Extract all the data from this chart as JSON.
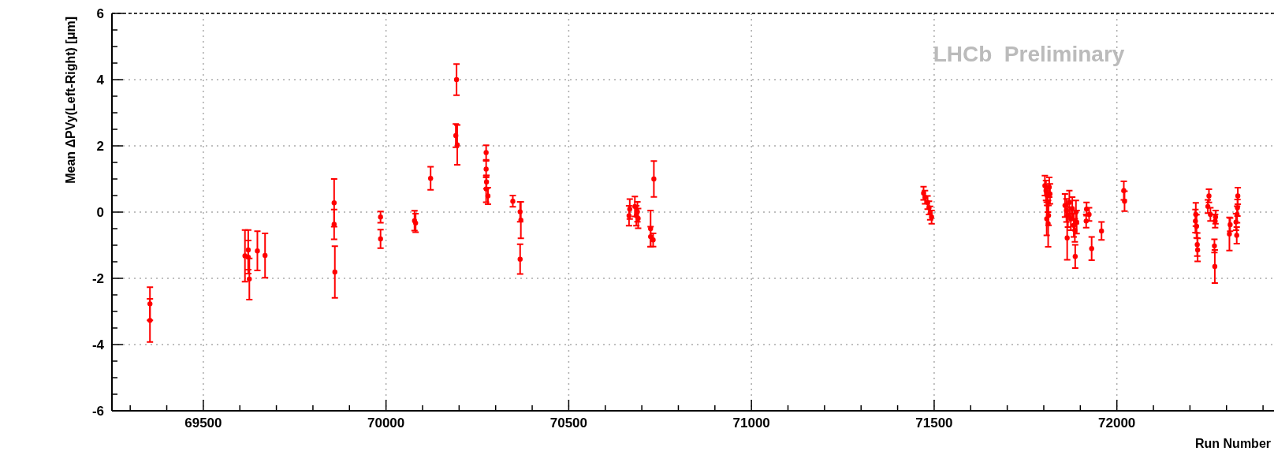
{
  "chart_data": {
    "type": "scatter",
    "xlabel": "Run Number",
    "ylabel": "Mean ΔPVy(Left-Right) [μm]",
    "annotations": [
      "LHCb  Preliminary"
    ],
    "xlim": [
      69250,
      72430
    ],
    "ylim": [
      -6,
      6
    ],
    "xticks": [
      {
        "value": 69300,
        "label": null
      },
      {
        "value": 69400,
        "label": null
      },
      69500,
      {
        "value": 69600,
        "label": null
      },
      {
        "value": 69700,
        "label": null
      },
      {
        "value": 69800,
        "label": null
      },
      {
        "value": 69900,
        "label": null
      },
      70000,
      {
        "value": 70100,
        "label": null
      },
      {
        "value": 70200,
        "label": null
      },
      {
        "value": 70300,
        "label": null
      },
      {
        "value": 70400,
        "label": null
      },
      70500,
      {
        "value": 70600,
        "label": null
      },
      {
        "value": 70700,
        "label": null
      },
      {
        "value": 70800,
        "label": null
      },
      {
        "value": 70900,
        "label": null
      },
      71000,
      {
        "value": 71100,
        "label": null
      },
      {
        "value": 71200,
        "label": null
      },
      {
        "value": 71300,
        "label": null
      },
      {
        "value": 71400,
        "label": null
      },
      71500,
      {
        "value": 71600,
        "label": null
      },
      {
        "value": 71700,
        "label": null
      },
      {
        "value": 71800,
        "label": null
      },
      {
        "value": 71900,
        "label": null
      },
      72000,
      {
        "value": 72100,
        "label": null
      },
      {
        "value": 72200,
        "label": null
      },
      {
        "value": 72300,
        "label": null
      },
      {
        "value": 72400,
        "label": null
      }
    ],
    "yticks": [
      -6,
      {
        "value": -5.5,
        "label": null
      },
      {
        "value": -5,
        "label": null
      },
      {
        "value": -4.5,
        "label": null
      },
      -4,
      {
        "value": -3.5,
        "label": null
      },
      {
        "value": -3,
        "label": null
      },
      {
        "value": -2.5,
        "label": null
      },
      -2,
      {
        "value": -1.5,
        "label": null
      },
      {
        "value": -1,
        "label": null
      },
      {
        "value": -0.5,
        "label": null
      },
      0,
      {
        "value": 0.5,
        "label": null
      },
      {
        "value": 1,
        "label": null
      },
      {
        "value": 1.5,
        "label": null
      },
      2,
      {
        "value": 2.5,
        "label": null
      },
      {
        "value": 3,
        "label": null
      },
      {
        "value": 3.5,
        "label": null
      },
      4,
      {
        "value": 4.5,
        "label": null
      },
      {
        "value": 5,
        "label": null
      },
      {
        "value": 5.5,
        "label": null
      },
      6
    ],
    "grid": true,
    "marker": "circle",
    "series": [
      {
        "color": "#ff0000",
        "x": [
          69354,
          69354,
          69614,
          69623,
          69623,
          69626,
          69648,
          69669,
          69858,
          69858,
          69860,
          69985,
          69985,
          70078,
          70081,
          70122,
          70193,
          70191,
          70195,
          70274,
          70274,
          70275,
          70274,
          70279,
          70347,
          70367,
          70369,
          70367,
          70665,
          70667,
          70681,
          70685,
          70688,
          70690,
          70733,
          70724,
          70724,
          70731,
          71471,
          71475,
          71482,
          71486,
          71489,
          71493,
          71803,
          71806,
          71809,
          71811,
          71813,
          71808,
          71812,
          71815,
          71817,
          71864,
          71886,
          71858,
          71862,
          71866,
          71870,
          71874,
          71878,
          71882,
          71885,
          71888,
          71890,
          71917,
          71916,
          71924,
          71931,
          71958,
          72019,
          72021,
          72216,
          72215,
          72218,
          72220,
          72221,
          72252,
          72249,
          72256,
          72270,
          72269,
          72267,
          72268,
          72308,
          72310,
          72328,
          72326,
          72330,
          72331,
          72329
        ],
        "values": [
          -2.77,
          -3.27,
          -1.32,
          -1.14,
          -1.36,
          -2.02,
          -1.17,
          -1.31,
          0.28,
          -0.37,
          -1.81,
          -0.15,
          -0.81,
          -0.26,
          -0.33,
          1.02,
          4.0,
          2.31,
          2.03,
          1.8,
          1.3,
          0.91,
          0.7,
          0.49,
          0.33,
          0.01,
          -0.24,
          -1.42,
          -0.11,
          0.09,
          0.17,
          -0.11,
          0.01,
          -0.19,
          1.0,
          -0.5,
          -0.74,
          -0.84,
          0.57,
          0.45,
          0.29,
          0.13,
          -0.03,
          -0.15,
          0.8,
          0.65,
          0.5,
          0.3,
          -0.1,
          -0.2,
          -0.35,
          0.75,
          0.55,
          -0.78,
          -1.34,
          0.2,
          0.05,
          -0.1,
          0.3,
          -0.2,
          0.1,
          -0.4,
          -0.55,
          0.0,
          -0.3,
          0.09,
          -0.27,
          -0.07,
          -1.1,
          -0.57,
          0.65,
          0.33,
          -0.07,
          -0.27,
          -0.43,
          -0.98,
          -1.14,
          0.49,
          0.17,
          -0.07,
          -0.15,
          -0.27,
          -1.02,
          -1.64,
          -0.66,
          -0.38,
          -0.7,
          -0.3,
          0.13,
          0.49,
          -0.07
        ],
        "errors": [
          0.5,
          0.65,
          0.78,
          0.6,
          0.5,
          0.62,
          0.59,
          0.67,
          0.72,
          0.45,
          0.78,
          0.17,
          0.28,
          0.3,
          0.28,
          0.35,
          0.47,
          0.35,
          0.6,
          0.22,
          0.25,
          0.2,
          0.4,
          0.25,
          0.17,
          0.3,
          0.55,
          0.45,
          0.3,
          0.3,
          0.3,
          0.3,
          0.3,
          0.3,
          0.54,
          0.55,
          0.3,
          0.2,
          0.2,
          0.2,
          0.2,
          0.2,
          0.2,
          0.2,
          0.3,
          0.3,
          0.3,
          0.3,
          0.3,
          0.5,
          0.7,
          0.3,
          0.3,
          0.66,
          0.35,
          0.35,
          0.35,
          0.35,
          0.35,
          0.35,
          0.35,
          0.35,
          0.35,
          0.35,
          0.35,
          0.2,
          0.2,
          0.2,
          0.35,
          0.27,
          0.28,
          0.3,
          0.35,
          0.35,
          0.35,
          0.35,
          0.35,
          0.2,
          0.2,
          0.2,
          0.2,
          0.2,
          0.2,
          0.5,
          0.5,
          0.2,
          0.25,
          0.25,
          0.25,
          0.25,
          0.25
        ]
      }
    ]
  }
}
